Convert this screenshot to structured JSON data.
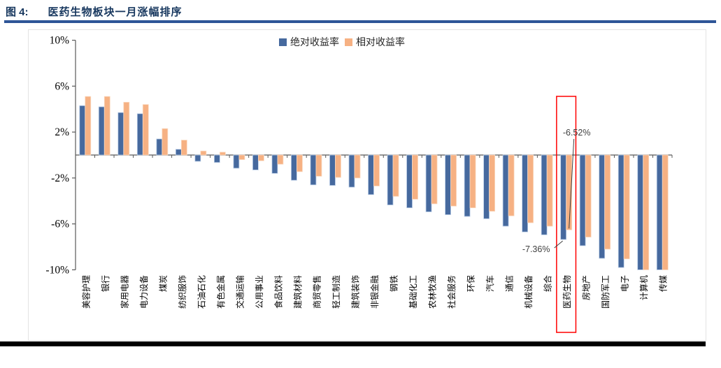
{
  "header": {
    "figure_label": "图 4:",
    "title": "医药生物板块一月涨幅排序"
  },
  "colors": {
    "absolute": "#46699E",
    "absolute_border": "#BCCFE8",
    "relative": "#F6B183",
    "relative_border": "#FAD9C0",
    "title": "#17375E",
    "rule": "#2E5597",
    "axis": "#595959",
    "annotation": "#404040",
    "highlight_box": "#FF0000",
    "bottom_bar": "#000000"
  },
  "chart_data": {
    "type": "bar",
    "title": "医药生物板块一月涨幅排序",
    "categories": [
      "美容护理",
      "银行",
      "家用电器",
      "电力设备",
      "煤炭",
      "纺织服饰",
      "石油石化",
      "有色金属",
      "交通运输",
      "公用事业",
      "食品饮料",
      "建筑材料",
      "商贸零售",
      "轻工制造",
      "建筑装饰",
      "非银金融",
      "钢铁",
      "基础化工",
      "农林牧渔",
      "社会服务",
      "环保",
      "汽车",
      "通信",
      "机械设备",
      "综合",
      "医药生物",
      "房地产",
      "国防军工",
      "电子",
      "计算机",
      "传媒"
    ],
    "series": [
      {
        "name": "绝对收益率",
        "color_key": "absolute",
        "values": [
          4.3,
          4.2,
          3.7,
          3.6,
          1.4,
          0.5,
          -0.55,
          -0.65,
          -1.15,
          -1.3,
          -1.6,
          -2.2,
          -2.6,
          -2.65,
          -2.8,
          -3.45,
          -4.35,
          -4.6,
          -4.95,
          -5.2,
          -5.35,
          -5.55,
          -6.2,
          -6.7,
          -6.95,
          -7.36,
          -7.9,
          -9.0,
          -9.8,
          -10.0,
          -10.0
        ]
      },
      {
        "name": "相对收益率",
        "color_key": "relative",
        "values": [
          5.1,
          5.1,
          4.6,
          4.4,
          2.3,
          1.3,
          0.35,
          0.25,
          -0.4,
          -0.5,
          -0.8,
          -1.45,
          -1.85,
          -1.95,
          -2.0,
          -2.7,
          -3.6,
          -3.85,
          -4.25,
          -4.45,
          -4.6,
          -4.9,
          -5.3,
          -5.9,
          -6.2,
          -6.52,
          -7.15,
          -8.2,
          -9.05,
          -10.0,
          -10.0
        ]
      }
    ],
    "ylim": [
      -10,
      10
    ],
    "yticks": [
      {
        "v": 10,
        "label": "10%"
      },
      {
        "v": 6,
        "label": "6%"
      },
      {
        "v": 2,
        "label": "2%"
      },
      {
        "v": -2,
        "label": "-2%"
      },
      {
        "v": -6,
        "label": "-6%"
      },
      {
        "v": -10,
        "label": "-10%"
      }
    ],
    "grid": false,
    "legend_position": "top-center",
    "xlabel": "",
    "ylabel": "",
    "highlighted_category": "医药生物",
    "annotations": [
      {
        "text": "-6.52%",
        "value": -6.52,
        "series": "相对收益率",
        "category": "医药生物",
        "placement": "above"
      },
      {
        "text": "-7.36%",
        "value": -7.36,
        "series": "绝对收益率",
        "category": "医药生物",
        "placement": "below-left"
      }
    ]
  }
}
